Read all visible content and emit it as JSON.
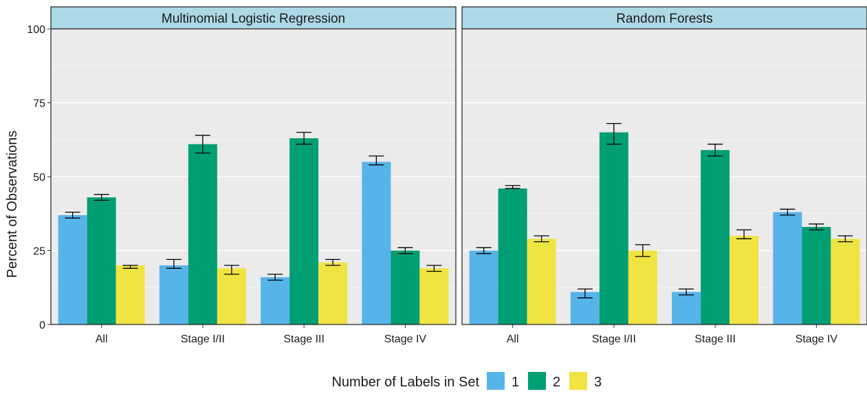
{
  "chart_data": {
    "type": "bar",
    "ylabel": "Percent of Observations",
    "ylim": [
      0,
      100
    ],
    "yticks": [
      0,
      25,
      50,
      75,
      100
    ],
    "grid": true,
    "legend_position": "bottom",
    "legend_title": "Number of Labels in Set",
    "series_names": [
      "1",
      "2",
      "3"
    ],
    "colors": [
      "#56B4E9",
      "#009E73",
      "#F0E442"
    ],
    "panels": [
      {
        "title": "Multinomial Logistic Regression",
        "categories": [
          "All",
          "Stage I/II",
          "Stage III",
          "Stage IV"
        ],
        "series": [
          {
            "name": "1",
            "values": [
              37,
              20,
              16,
              55
            ],
            "err_low": [
              36,
              19,
              15,
              54
            ],
            "err_high": [
              38,
              22,
              17,
              57
            ]
          },
          {
            "name": "2",
            "values": [
              43,
              61,
              63,
              25
            ],
            "err_low": [
              42,
              58,
              61,
              24
            ],
            "err_high": [
              44,
              64,
              65,
              26
            ]
          },
          {
            "name": "3",
            "values": [
              20,
              19,
              21,
              19
            ],
            "err_low": [
              19,
              17,
              20,
              18
            ],
            "err_high": [
              20,
              20,
              22,
              20
            ]
          }
        ]
      },
      {
        "title": "Random Forests",
        "categories": [
          "All",
          "Stage I/II",
          "Stage III",
          "Stage IV"
        ],
        "series": [
          {
            "name": "1",
            "values": [
              25,
              11,
              11,
              38
            ],
            "err_low": [
              24,
              9,
              10,
              37
            ],
            "err_high": [
              26,
              12,
              12,
              39
            ]
          },
          {
            "name": "2",
            "values": [
              46,
              65,
              59,
              33
            ],
            "err_low": [
              46,
              61,
              57,
              32
            ],
            "err_high": [
              47,
              68,
              61,
              34
            ]
          },
          {
            "name": "3",
            "values": [
              29,
              25,
              30,
              29
            ],
            "err_low": [
              28,
              23,
              29,
              28
            ],
            "err_high": [
              30,
              27,
              32,
              30
            ]
          }
        ]
      }
    ]
  }
}
